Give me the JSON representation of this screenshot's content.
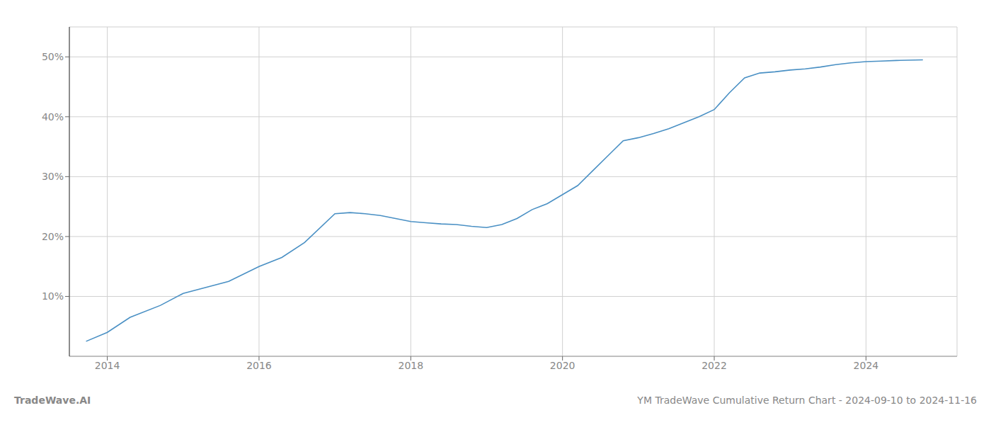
{
  "chart_data": {
    "type": "line",
    "x": [
      2013.72,
      2014.0,
      2014.3,
      2014.7,
      2015.0,
      2015.3,
      2015.6,
      2016.0,
      2016.3,
      2016.6,
      2017.0,
      2017.2,
      2017.4,
      2017.6,
      2017.8,
      2018.0,
      2018.2,
      2018.4,
      2018.6,
      2018.8,
      2019.0,
      2019.2,
      2019.4,
      2019.6,
      2019.8,
      2020.0,
      2020.2,
      2020.4,
      2020.6,
      2020.8,
      2021.0,
      2021.2,
      2021.4,
      2021.6,
      2021.8,
      2022.0,
      2022.2,
      2022.4,
      2022.6,
      2022.8,
      2023.0,
      2023.2,
      2023.4,
      2023.6,
      2023.8,
      2024.0,
      2024.2,
      2024.4,
      2024.75
    ],
    "values": [
      2.5,
      4.0,
      6.5,
      8.5,
      10.5,
      11.5,
      12.5,
      15.0,
      16.5,
      19.0,
      23.8,
      24.0,
      23.8,
      23.5,
      23.0,
      22.5,
      22.3,
      22.1,
      22.0,
      21.7,
      21.5,
      22.0,
      23.0,
      24.5,
      25.5,
      27.0,
      28.5,
      31.0,
      33.5,
      36.0,
      36.5,
      37.2,
      38.0,
      39.0,
      40.0,
      41.2,
      44.0,
      46.5,
      47.3,
      47.5,
      47.8,
      48.0,
      48.3,
      48.7,
      49.0,
      49.2,
      49.3,
      49.4,
      49.5
    ],
    "color": "#4a90c4",
    "xlim": [
      2013.5,
      2025.2
    ],
    "ylim": [
      0,
      55
    ],
    "xticks": [
      2014,
      2016,
      2018,
      2020,
      2022,
      2024
    ],
    "yticks": [
      {
        "value": 10,
        "label": "10%"
      },
      {
        "value": 20,
        "label": "20%"
      },
      {
        "value": 30,
        "label": "30%"
      },
      {
        "value": 40,
        "label": "40%"
      },
      {
        "value": 50,
        "label": "50%"
      }
    ],
    "grid": true,
    "annotations": [
      "TradeWave.AI",
      "YM TradeWave Cumulative Return Chart - 2024-09-10 to 2024-11-16"
    ]
  }
}
